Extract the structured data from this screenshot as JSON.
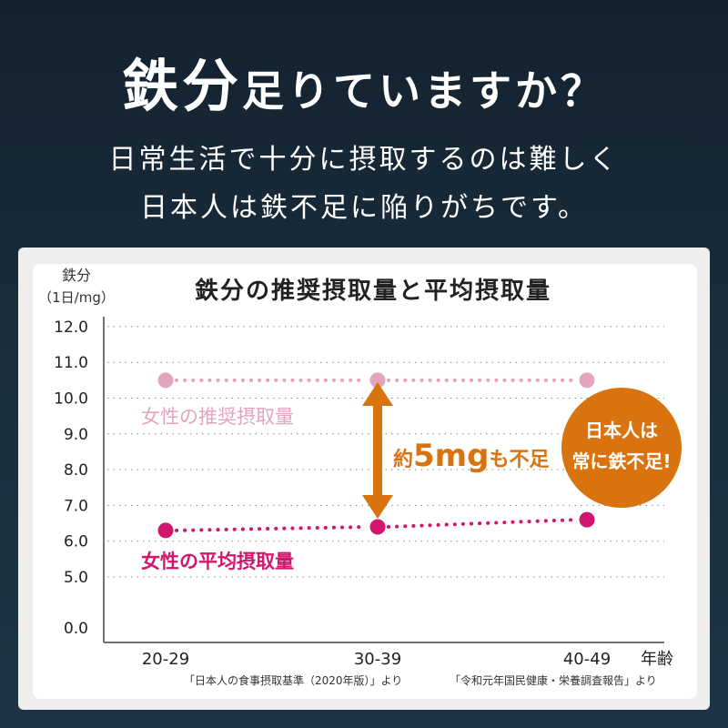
{
  "headline": {
    "big": "鉄分",
    "rest": "足りていますか？"
  },
  "subtext": {
    "line1": "日常生活で十分に摂取するのは難しく",
    "line2": "日本人は鉄不足に陥りがちです。"
  },
  "colors": {
    "recommended": "#e3a4c0",
    "average": "#d2166e",
    "accent": "#d97310",
    "grid": "#888888"
  },
  "chart_data": {
    "type": "line",
    "title": "鉄分の推奨摂取量と平均摂取量",
    "ylabel": "鉄分",
    "yunit": "（1日/mg）",
    "xlabel": "年齢",
    "categories": [
      "20-29",
      "30-39",
      "40-49"
    ],
    "yticks": [
      "12.0",
      "11.0",
      "10.0",
      "9.0",
      "8.0",
      "7.0",
      "6.0",
      "5.0",
      "0.0"
    ],
    "y_axis_break": "between 0.0 and 5.0",
    "grid": true,
    "series": [
      {
        "name": "女性の推奨摂取量",
        "values": [
          10.5,
          10.5,
          10.5
        ],
        "color": "#e3a4c0"
      },
      {
        "name": "女性の平均摂取量",
        "values": [
          6.3,
          6.4,
          6.6
        ],
        "color": "#d2166e"
      }
    ],
    "annotations": {
      "gap_prefix": "約",
      "gap_value": "5mg",
      "gap_suffix": "も不足",
      "badge_line1": "日本人は",
      "badge_line2": "常に鉄不足!"
    },
    "sources": {
      "left": "「日本人の食事摂取基準（2020年版）」より",
      "right": "「令和元年国民健康・栄養調査報告」より"
    }
  }
}
